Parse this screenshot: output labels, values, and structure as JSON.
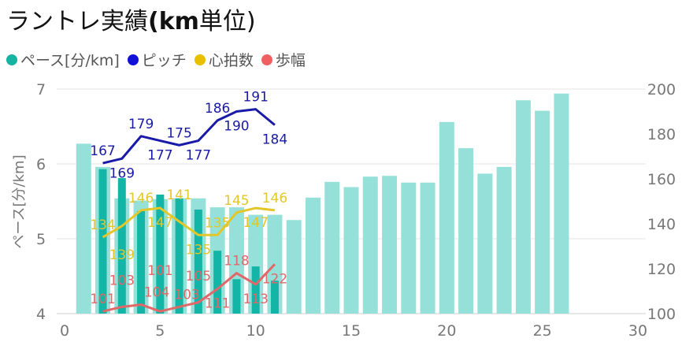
{
  "title": {
    "prefix": "ラントレ実績",
    "bold": "(km",
    "suffix": "単位)"
  },
  "legend": [
    {
      "label": "ペース[分/km]",
      "color": "#16b3a3"
    },
    {
      "label": "ピッチ",
      "color": "#1010d8"
    },
    {
      "label": "心拍数",
      "color": "#e8c000"
    },
    {
      "label": "歩幅",
      "color": "#f06060"
    }
  ],
  "chart_data": {
    "type": "bar+line",
    "title": "ラントレ実績(km単位)",
    "ylabel": "ペース[分/km]",
    "xlim": [
      0,
      30
    ],
    "x_ticks": [
      "0",
      "5",
      "10",
      "15",
      "20",
      "25",
      "30"
    ],
    "ylim_left": [
      4,
      7
    ],
    "y_ticks_left": [
      "4",
      "5",
      "6",
      "7"
    ],
    "ylim_right": [
      100,
      200
    ],
    "y_ticks_right": [
      "100",
      "120",
      "140",
      "160",
      "180",
      "200"
    ],
    "grid": true,
    "legend_position": "top-left",
    "bars_light": {
      "color": "#95e0d9",
      "x": [
        1,
        2,
        3,
        4,
        5,
        6,
        7,
        8,
        9,
        10,
        11,
        12,
        13,
        14,
        15,
        16,
        17,
        18,
        19,
        20,
        21,
        22,
        23,
        24,
        25,
        26
      ],
      "values": [
        6.27,
        5.96,
        5.54,
        5.51,
        5.53,
        5.54,
        5.54,
        5.42,
        5.42,
        5.32,
        5.32,
        5.25,
        5.55,
        5.76,
        5.69,
        5.83,
        5.84,
        5.75,
        5.75,
        6.56,
        6.21,
        5.87,
        5.96,
        6.85,
        6.71,
        6.94
      ]
    },
    "bars_dark": {
      "color": "#13b5a6",
      "x": [
        2,
        3,
        4,
        5,
        6,
        7,
        8,
        9,
        10,
        11
      ],
      "values": [
        5.93,
        5.81,
        5.37,
        5.59,
        5.54,
        5.39,
        4.84,
        4.46,
        4.63,
        4.44
      ]
    },
    "series": [
      {
        "name": "ピッチ",
        "color": "#1a1aa8",
        "axis": "right",
        "x": [
          2,
          3,
          4,
          5,
          6,
          7,
          8,
          9,
          10,
          11
        ],
        "values": [
          167,
          169,
          179,
          177,
          175,
          177,
          186,
          190,
          191,
          184
        ]
      },
      {
        "name": "心拍数",
        "color": "#e3c72a",
        "axis": "right",
        "x": [
          2,
          3,
          4,
          5,
          6,
          7,
          8,
          9,
          10,
          11
        ],
        "values": [
          134,
          139,
          146,
          147,
          141,
          135,
          135,
          145,
          147,
          146
        ]
      },
      {
        "name": "歩幅",
        "color": "#e06868",
        "axis": "right",
        "x": [
          2,
          3,
          4,
          5,
          6,
          7,
          8,
          9,
          10,
          11
        ],
        "values": [
          101,
          103,
          104,
          101,
          103,
          105,
          111,
          118,
          113,
          122
        ]
      }
    ]
  }
}
